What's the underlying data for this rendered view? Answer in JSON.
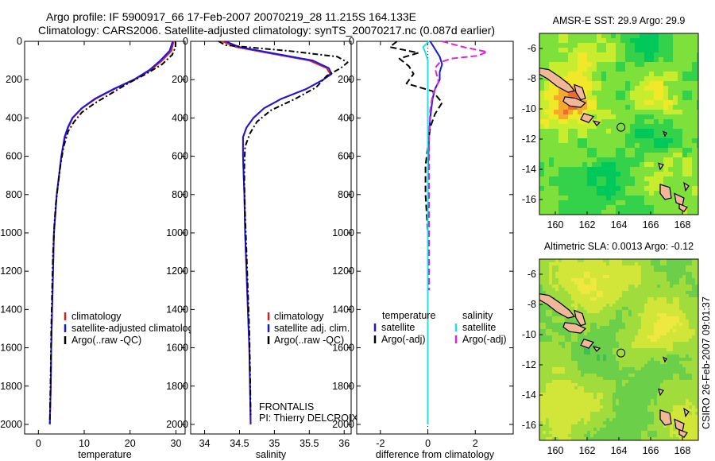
{
  "header": {
    "line1": "Argo profile: IF 5900917_66 17-Feb-2007 20070219_28 11.215S 164.133E",
    "line2": "Climatology: CARS2006. Satellite-adjusted climatology: synTS_20070217.nc (0.087d earlier)"
  },
  "side_label": "CSIRO 26-Feb-2007 09:01:37",
  "colors": {
    "climatology": "#e0201a",
    "satellite": "#1818e0",
    "argo": "#000000",
    "salinity_satellite": "#22e0e0",
    "salinity_argo": "#e020e0",
    "land": "#f0b898"
  },
  "chart_data": [
    {
      "id": "temperature",
      "type": "line",
      "xlabel": "temperature",
      "ylabel": "",
      "xlim": [
        -3,
        32
      ],
      "ylim": [
        0,
        2050
      ],
      "y_inverted": true,
      "xticks": [
        0,
        10,
        20,
        30
      ],
      "yticks": [
        0,
        200,
        400,
        600,
        800,
        1000,
        1200,
        1400,
        1600,
        1800,
        2000
      ],
      "legend": [
        "climatology",
        "satellite-adjusted climatology",
        "Argo(..raw -QC)"
      ],
      "series": [
        {
          "name": "climatology",
          "color": "#e0201a",
          "dash": "",
          "x": [
            29.5,
            29.0,
            27.0,
            24.5,
            21.0,
            16.5,
            12.5,
            9.5,
            7.5,
            6.5,
            5.8,
            5.0,
            4.5,
            4.0,
            3.7,
            3.4,
            3.2,
            3.0,
            2.8,
            2.7,
            2.6,
            2.5
          ],
          "y": [
            0,
            50,
            100,
            150,
            200,
            250,
            300,
            350,
            400,
            450,
            500,
            600,
            700,
            800,
            900,
            1000,
            1200,
            1400,
            1600,
            1800,
            1900,
            2000
          ]
        },
        {
          "name": "satellite-adjusted climatology",
          "color": "#1818e0",
          "dash": "",
          "x": [
            29.3,
            28.6,
            26.6,
            24.2,
            20.8,
            16.3,
            12.3,
            9.4,
            7.4,
            6.4,
            5.7,
            5.0,
            4.5,
            4.0,
            3.7,
            3.4,
            3.2,
            3.0,
            2.8,
            2.7,
            2.6,
            2.5
          ],
          "y": [
            0,
            50,
            100,
            150,
            200,
            250,
            300,
            350,
            400,
            450,
            500,
            600,
            700,
            800,
            900,
            1000,
            1200,
            1400,
            1600,
            1800,
            1900,
            2000
          ]
        },
        {
          "name": "Argo(..raw -QC)",
          "color": "#000000",
          "dash": "7,3,2,3",
          "x": [
            29.9,
            29.9,
            29.2,
            27.0,
            23.5,
            19.5,
            16.0,
            12.5,
            9.5,
            7.8,
            6.5,
            5.5,
            4.8,
            4.3,
            3.8,
            3.5,
            3.2,
            3.0,
            2.8,
            2.7,
            2.6,
            2.5
          ],
          "y": [
            0,
            30,
            70,
            120,
            170,
            220,
            270,
            320,
            370,
            420,
            470,
            550,
            650,
            750,
            850,
            950,
            1100,
            1300,
            1500,
            1700,
            1850,
            1990
          ]
        }
      ]
    },
    {
      "id": "salinity",
      "type": "line",
      "xlabel": "salinity",
      "ylabel": "",
      "xlim": [
        33.8,
        36.1
      ],
      "ylim": [
        0,
        2050
      ],
      "y_inverted": true,
      "xticks": [
        34,
        34.5,
        35,
        35.5,
        36
      ],
      "yticks": [
        0,
        200,
        400,
        600,
        800,
        1000,
        1200,
        1400,
        1600,
        1800,
        2000
      ],
      "legend": [
        "climatology",
        "satellite adj. clim.",
        "Argo(..raw -QC)"
      ],
      "annotation": [
        "FRONTALIS",
        "PI: Thierry DELCROIX"
      ],
      "series": [
        {
          "name": "climatology",
          "color": "#e0201a",
          "dash": "",
          "x": [
            34.25,
            34.45,
            34.9,
            35.5,
            35.75,
            35.8,
            35.7,
            35.45,
            35.1,
            34.85,
            34.7,
            34.6,
            34.55,
            34.55,
            34.56,
            34.57,
            34.58,
            34.6,
            34.62,
            34.64,
            34.65,
            34.66
          ],
          "y": [
            0,
            30,
            60,
            100,
            140,
            170,
            200,
            250,
            300,
            350,
            400,
            450,
            500,
            600,
            700,
            800,
            1000,
            1200,
            1400,
            1600,
            1800,
            2000
          ]
        },
        {
          "name": "satellite adj. clim.",
          "color": "#1818e0",
          "dash": "",
          "x": [
            34.3,
            34.5,
            34.95,
            35.55,
            35.78,
            35.82,
            35.7,
            35.45,
            35.1,
            34.85,
            34.7,
            34.6,
            34.55,
            34.55,
            34.56,
            34.57,
            34.58,
            34.6,
            34.62,
            34.64,
            34.65,
            34.66
          ],
          "y": [
            0,
            30,
            60,
            100,
            140,
            170,
            200,
            250,
            300,
            350,
            400,
            450,
            500,
            600,
            700,
            800,
            1000,
            1200,
            1400,
            1600,
            1800,
            2000
          ]
        },
        {
          "name": "Argo(..raw -QC)",
          "color": "#000000",
          "dash": "7,3,2,3",
          "x": [
            34.2,
            34.3,
            35.2,
            35.9,
            36.05,
            35.95,
            35.75,
            35.6,
            35.3,
            34.95,
            34.75,
            34.65,
            34.58,
            34.57,
            34.57,
            34.58,
            34.6,
            34.62,
            34.64,
            34.65,
            34.66
          ],
          "y": [
            0,
            20,
            50,
            80,
            110,
            140,
            180,
            240,
            300,
            360,
            420,
            480,
            550,
            650,
            750,
            900,
            1100,
            1300,
            1500,
            1700,
            1950
          ]
        }
      ]
    },
    {
      "id": "difference",
      "type": "line",
      "xlabel": "difference from climatology",
      "ylabel": "",
      "xlim": [
        -3,
        3.6
      ],
      "ylim": [
        0,
        2050
      ],
      "y_inverted": true,
      "xticks": [
        -2,
        0,
        2
      ],
      "yticks": [
        0,
        200,
        400,
        600,
        800,
        1000,
        1200,
        1400,
        1600,
        1800,
        2000
      ],
      "legend_columns": [
        {
          "title": "temperature",
          "entries": [
            "satellite",
            "Argo(-adj)"
          ]
        },
        {
          "title": "salinity",
          "entries": [
            "satellite",
            "Argo(-adj)"
          ]
        }
      ],
      "series": [
        {
          "name": "temperature satellite",
          "color": "#1818e0",
          "dash": "",
          "x": [
            0.1,
            0.3,
            0.5,
            0.6,
            0.5,
            0.5,
            0.3,
            0.2,
            0.1,
            0.05,
            0.0,
            0.0,
            0.0,
            0.0,
            0.0
          ],
          "y": [
            0,
            40,
            80,
            120,
            160,
            200,
            250,
            300,
            400,
            500,
            700,
            1000,
            1400,
            1800,
            2000
          ]
        },
        {
          "name": "temperature Argo(-adj)",
          "color": "#000000",
          "dash": "8,4",
          "x": [
            -1.3,
            -1.6,
            -0.4,
            -1.2,
            -0.8,
            -0.6,
            -0.9,
            0.2,
            0.6,
            0.3,
            0.1,
            0.0,
            -0.1,
            -0.1,
            0.0,
            0.0
          ],
          "y": [
            0,
            30,
            60,
            90,
            130,
            170,
            220,
            260,
            320,
            380,
            450,
            550,
            650,
            800,
            1000,
            1300
          ]
        },
        {
          "name": "salinity satellite",
          "color": "#22e0e0",
          "dash": "",
          "x": [
            0.05,
            -0.2,
            -0.1,
            0.0,
            0.0,
            0.0,
            0.0,
            0.0,
            0.0,
            0.0
          ],
          "y": [
            0,
            30,
            60,
            100,
            150,
            200,
            400,
            800,
            1400,
            2000
          ]
        },
        {
          "name": "salinity Argo(-adj)",
          "color": "#e020e0",
          "dash": "8,4",
          "x": [
            0.6,
            1.5,
            2.5,
            2.1,
            1.0,
            0.5,
            0.3,
            0.45,
            0.2,
            0.1,
            0.05,
            0.05,
            0.05
          ],
          "y": [
            0,
            30,
            55,
            75,
            90,
            110,
            140,
            210,
            280,
            360,
            500,
            800,
            1300
          ]
        }
      ]
    },
    {
      "id": "sst_map",
      "type": "heatmap",
      "title": "AMSR-E SST: 29.9 Argo: 29.9",
      "xlim": [
        159,
        169
      ],
      "ylim": [
        -17,
        -5
      ],
      "xticks": [
        160,
        162,
        164,
        166,
        168
      ],
      "yticks": [
        -6,
        -8,
        -10,
        -12,
        -14,
        -16
      ],
      "argo_position": {
        "lon": 164.133,
        "lat": -11.215
      },
      "palette": [
        "#00c85a",
        "#33d24a",
        "#7ee03a",
        "#c8ec2e",
        "#f2e82a",
        "#f7a82e",
        "#f26a2e"
      ],
      "hot_spots": [
        {
          "lon": 160.8,
          "lat": -9.8,
          "level": 5.5
        },
        {
          "lon": 161.5,
          "lat": -6.4,
          "level": 3.2
        },
        {
          "lon": 166.7,
          "lat": -9.3,
          "level": 3.5
        },
        {
          "lon": 167.6,
          "lat": -14.1,
          "level": 3.0
        }
      ],
      "cold_spots": [
        {
          "lon": 167.0,
          "lat": -11.8,
          "level": 0.2
        },
        {
          "lon": 163.0,
          "lat": -15.0,
          "level": 0.3
        },
        {
          "lon": 165.5,
          "lat": -6.0,
          "level": 0.4
        }
      ]
    },
    {
      "id": "sla_map",
      "type": "heatmap",
      "title": "Altimetric SLA: 0.0013 Argo: -0.12",
      "xlim": [
        159,
        169
      ],
      "ylim": [
        -17,
        -5
      ],
      "xticks": [
        160,
        162,
        164,
        166,
        168
      ],
      "yticks": [
        -6,
        -8,
        -10,
        -12,
        -14,
        -16
      ],
      "argo_position": {
        "lon": 164.133,
        "lat": -11.215
      },
      "palette": [
        "#3fbf58",
        "#6bcf4a",
        "#a0dc3c",
        "#d2e63a",
        "#eee840"
      ],
      "hot_spots": [
        {
          "lon": 162.5,
          "lat": -6.5,
          "level": 4.0
        },
        {
          "lon": 166.5,
          "lat": -9.8,
          "level": 4.0
        },
        {
          "lon": 160.5,
          "lat": -14.5,
          "level": 3.6
        },
        {
          "lon": 168.2,
          "lat": -16.5,
          "level": 3.2
        }
      ],
      "cold_spots": [
        {
          "lon": 163.5,
          "lat": -9.3,
          "level": 0.6
        },
        {
          "lon": 166.2,
          "lat": -12.2,
          "level": 0.5
        },
        {
          "lon": 162.0,
          "lat": -11.8,
          "level": 0.9
        },
        {
          "lon": 165.0,
          "lat": -16.3,
          "level": 0.6
        }
      ]
    }
  ]
}
